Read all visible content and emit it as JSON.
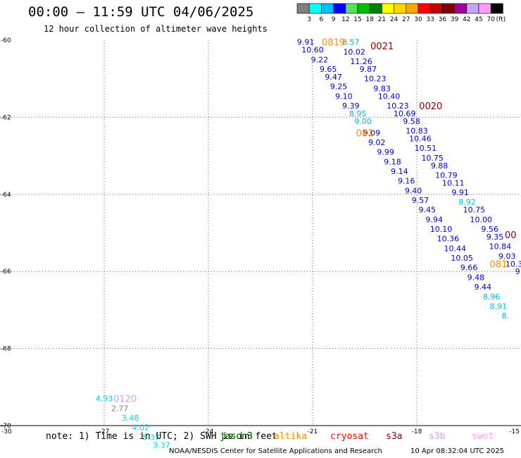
{
  "header": {
    "title": "00:00 – 11:59 UTC 04/06/2025",
    "subtitle": "12 hour collection of altimeter wave heights"
  },
  "footer": {
    "note": "note: 1) Time is in UTC; 2) SWH is in feet",
    "credit": "NOAA/NESDIS Center for Satellite Applications and Research",
    "date": "10 Apr 08:32:04 UTC 2025"
  },
  "satellites": [
    {
      "name": "jason3"
    },
    {
      "name": "jason3"
    },
    {
      "name": "altika"
    },
    {
      "name": "cryosat"
    },
    {
      "name": "s3a"
    },
    {
      "name": "s3b"
    },
    {
      "name": "swot"
    }
  ],
  "colorbar": {
    "labels": [
      "3",
      "6",
      "9",
      "12",
      "15",
      "18",
      "21",
      "24",
      "27",
      "30",
      "33",
      "36",
      "39",
      "42",
      "45",
      "70"
    ],
    "unit": "(ft)",
    "colors": [
      "#808080",
      "#00ffff",
      "#00bfff",
      "#0000ff",
      "#55e055",
      "#00c000",
      "#008000",
      "#ffff00",
      "#ffd700",
      "#ffa500",
      "#ff0000",
      "#c00000",
      "#800000",
      "#a000a0",
      "#c8a0ff",
      "#ff9cff",
      "#000000"
    ]
  },
  "chart_data": {
    "type": "scatter",
    "xlabel": "",
    "ylabel": "",
    "xlim": [
      -30,
      -15
    ],
    "ylim": [
      -70,
      -60
    ],
    "x_ticks": [
      "-30",
      "-27",
      "-24",
      "-21",
      "-18",
      "-15"
    ],
    "y_ticks": [
      "-60",
      "-62",
      "-64",
      "-66",
      "-68",
      "-70"
    ],
    "grid": true,
    "track_labels": [
      {
        "text": "0819",
        "x": -20.4,
        "y": -60.05,
        "color": "#ff8c00"
      },
      {
        "text": "0021",
        "x": -19.0,
        "y": -60.15,
        "color": "#8b0000"
      },
      {
        "text": "0020",
        "x": -17.6,
        "y": -61.7,
        "color": "#8b0000"
      },
      {
        "text": "081",
        "x": -19.5,
        "y": -62.4,
        "color": "#ff8c00"
      },
      {
        "text": "00",
        "x": -15.3,
        "y": -65.05,
        "color": "#8b0000"
      },
      {
        "text": "081",
        "x": -15.65,
        "y": -65.8,
        "color": "#ff8c00"
      },
      {
        "text": "0120",
        "x": -26.4,
        "y": -69.3,
        "color": "#c8a0ff"
      }
    ],
    "points": [
      {
        "x": -21.2,
        "y": -60.05,
        "v": "9.91",
        "color": "#0000cc"
      },
      {
        "x": -19.9,
        "y": -60.05,
        "v": "8.57",
        "color": "#00bcd4"
      },
      {
        "x": -21.0,
        "y": -60.25,
        "v": "10.60",
        "color": "#0000cc"
      },
      {
        "x": -19.8,
        "y": -60.3,
        "v": "10.02",
        "color": "#0000cc"
      },
      {
        "x": -20.8,
        "y": -60.5,
        "v": "9.22",
        "color": "#0000cc"
      },
      {
        "x": -19.6,
        "y": -60.55,
        "v": "11.26",
        "color": "#0000cc"
      },
      {
        "x": -20.55,
        "y": -60.75,
        "v": "9.65",
        "color": "#0000cc"
      },
      {
        "x": -19.4,
        "y": -60.75,
        "v": "9.87",
        "color": "#0000cc"
      },
      {
        "x": -20.4,
        "y": -60.95,
        "v": "9.47",
        "color": "#0000cc"
      },
      {
        "x": -19.2,
        "y": -61.0,
        "v": "10.23",
        "color": "#0000cc"
      },
      {
        "x": -20.25,
        "y": -61.2,
        "v": "9.25",
        "color": "#0000cc"
      },
      {
        "x": -19.0,
        "y": -61.25,
        "v": "9.83",
        "color": "#0000cc"
      },
      {
        "x": -20.1,
        "y": -61.45,
        "v": "9.10",
        "color": "#0000cc"
      },
      {
        "x": -18.8,
        "y": -61.45,
        "v": "10.40",
        "color": "#0000cc"
      },
      {
        "x": -19.9,
        "y": -61.7,
        "v": "9.39",
        "color": "#0000cc"
      },
      {
        "x": -18.55,
        "y": -61.7,
        "v": "10.23",
        "color": "#0000cc"
      },
      {
        "x": -19.7,
        "y": -61.9,
        "v": "8.95",
        "color": "#00bcd4"
      },
      {
        "x": -18.35,
        "y": -61.9,
        "v": "10.69",
        "color": "#0000cc"
      },
      {
        "x": -19.55,
        "y": -62.1,
        "v": "9.00",
        "color": "#00bcd4"
      },
      {
        "x": -18.15,
        "y": -62.1,
        "v": "9.58",
        "color": "#0000cc"
      },
      {
        "x": -18.0,
        "y": -62.35,
        "v": "10.83",
        "color": "#0000cc"
      },
      {
        "x": -19.3,
        "y": -62.4,
        "v": "9.09",
        "color": "#0000cc"
      },
      {
        "x": -17.9,
        "y": -62.55,
        "v": "10.46",
        "color": "#0000cc"
      },
      {
        "x": -19.15,
        "y": -62.65,
        "v": "9.02",
        "color": "#0000cc"
      },
      {
        "x": -17.75,
        "y": -62.8,
        "v": "10.51",
        "color": "#0000cc"
      },
      {
        "x": -18.9,
        "y": -62.9,
        "v": "9.99",
        "color": "#0000cc"
      },
      {
        "x": -17.55,
        "y": -63.05,
        "v": "10.75",
        "color": "#0000cc"
      },
      {
        "x": -18.7,
        "y": -63.15,
        "v": "9.18",
        "color": "#0000cc"
      },
      {
        "x": -17.35,
        "y": -63.25,
        "v": "9.88",
        "color": "#0000cc"
      },
      {
        "x": -18.5,
        "y": -63.4,
        "v": "9.14",
        "color": "#0000cc"
      },
      {
        "x": -17.15,
        "y": -63.5,
        "v": "10.79",
        "color": "#0000cc"
      },
      {
        "x": -18.3,
        "y": -63.65,
        "v": "9.16",
        "color": "#0000cc"
      },
      {
        "x": -16.95,
        "y": -63.7,
        "v": "10.11",
        "color": "#0000cc"
      },
      {
        "x": -18.1,
        "y": -63.9,
        "v": "9.40",
        "color": "#0000cc"
      },
      {
        "x": -16.75,
        "y": -63.95,
        "v": "9.91",
        "color": "#0000cc"
      },
      {
        "x": -17.9,
        "y": -64.15,
        "v": "9.57",
        "color": "#0000cc"
      },
      {
        "x": -16.55,
        "y": -64.2,
        "v": "8.92",
        "color": "#00bcd4"
      },
      {
        "x": -17.7,
        "y": -64.4,
        "v": "9.45",
        "color": "#0000cc"
      },
      {
        "x": -16.35,
        "y": -64.4,
        "v": "10.75",
        "color": "#0000cc"
      },
      {
        "x": -17.5,
        "y": -64.65,
        "v": "9.94",
        "color": "#0000cc"
      },
      {
        "x": -16.15,
        "y": -64.65,
        "v": "10.00",
        "color": "#0000cc"
      },
      {
        "x": -17.3,
        "y": -64.9,
        "v": "10.10",
        "color": "#0000cc"
      },
      {
        "x": -15.9,
        "y": -64.9,
        "v": "9.56",
        "color": "#0000cc"
      },
      {
        "x": -17.1,
        "y": -65.15,
        "v": "10.36",
        "color": "#0000cc"
      },
      {
        "x": -15.75,
        "y": -65.1,
        "v": "9.35",
        "color": "#0000cc"
      },
      {
        "x": -16.9,
        "y": -65.4,
        "v": "10.44",
        "color": "#0000cc"
      },
      {
        "x": -15.6,
        "y": -65.35,
        "v": "10.84",
        "color": "#0000cc"
      },
      {
        "x": -16.7,
        "y": -65.65,
        "v": "10.05",
        "color": "#0000cc"
      },
      {
        "x": -15.4,
        "y": -65.6,
        "v": "9.03",
        "color": "#0000cc"
      },
      {
        "x": -15.2,
        "y": -65.8,
        "v": "10.3",
        "color": "#0000cc"
      },
      {
        "x": -16.5,
        "y": -65.9,
        "v": "9.66",
        "color": "#0000cc"
      },
      {
        "x": -15.1,
        "y": -66.0,
        "v": "9",
        "color": "#0000cc"
      },
      {
        "x": -16.3,
        "y": -66.15,
        "v": "9.48",
        "color": "#0000cc"
      },
      {
        "x": -16.1,
        "y": -66.4,
        "v": "9.44",
        "color": "#0000cc"
      },
      {
        "x": -15.85,
        "y": -66.65,
        "v": "8.96",
        "color": "#00bcd4"
      },
      {
        "x": -15.65,
        "y": -66.9,
        "v": "8.91",
        "color": "#00bcd4"
      },
      {
        "x": -15.45,
        "y": -67.15,
        "v": "8.",
        "color": "#00bcd4"
      },
      {
        "x": -27.0,
        "y": -69.3,
        "v": "4.93",
        "color": "#00d8d8"
      },
      {
        "x": -26.55,
        "y": -69.55,
        "v": "2.77",
        "color": "#808080"
      },
      {
        "x": -26.25,
        "y": -69.8,
        "v": "3.48",
        "color": "#00d8d8"
      },
      {
        "x": -25.95,
        "y": -70.05,
        "v": "4.02",
        "color": "#00d8d8"
      },
      {
        "x": -25.65,
        "y": -70.3,
        "v": "5.37",
        "color": "#00d8d8"
      },
      {
        "x": -25.35,
        "y": -70.5,
        "v": "3.37",
        "color": "#00d8d8"
      }
    ]
  }
}
